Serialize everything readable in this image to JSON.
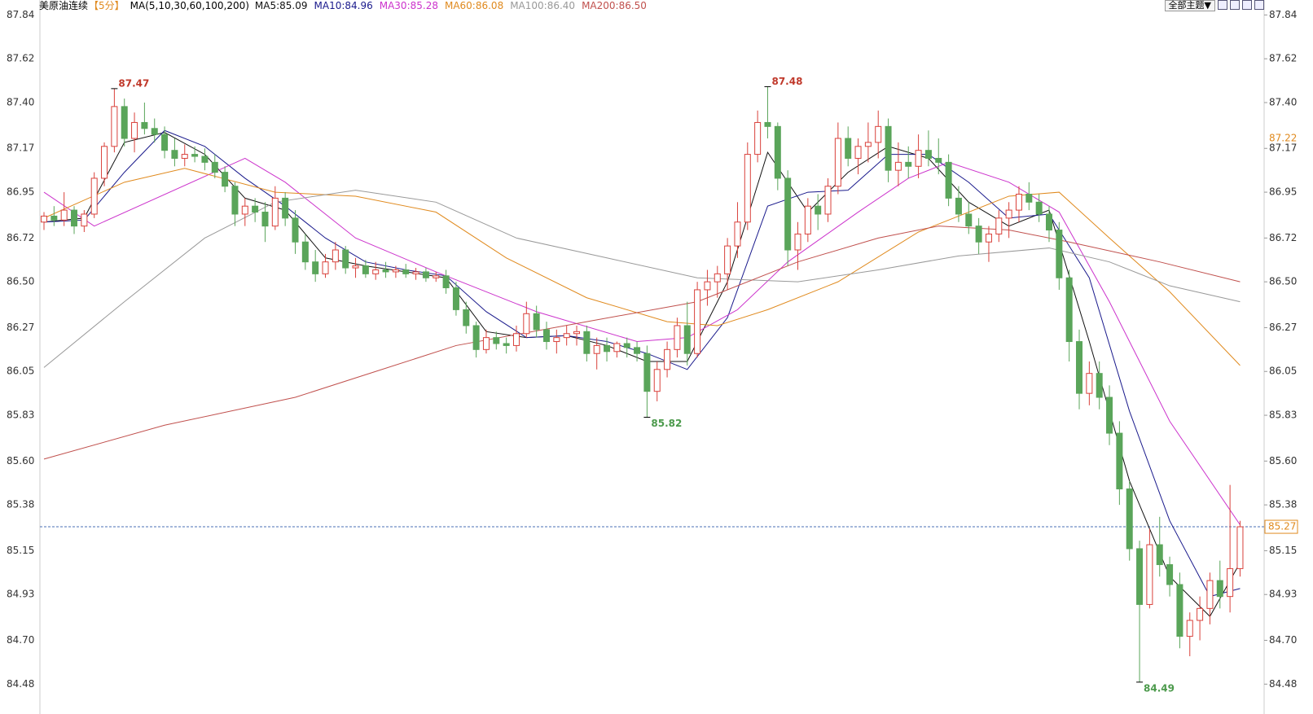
{
  "chart_data": {
    "type": "candlestick",
    "header": {
      "title": "美原油连续",
      "period": "【5分】",
      "ma_label": "MA(5,10,30,60,100,200)"
    },
    "toolbar": {
      "theme_button": "全部主题▼"
    },
    "ylim": [
      84.33,
      87.915
    ],
    "yticks": [
      {
        "value": 87.84,
        "label": "87.84"
      },
      {
        "value": 87.62,
        "label": "87.62"
      },
      {
        "value": 87.4,
        "label": "87.40"
      },
      {
        "value": 87.17,
        "label": "87.17"
      },
      {
        "value": 86.95,
        "label": "86.95"
      },
      {
        "value": 86.72,
        "label": "86.72"
      },
      {
        "value": 86.5,
        "label": "86.50"
      },
      {
        "value": 86.27,
        "label": "86.27"
      },
      {
        "value": 86.05,
        "label": "86.05"
      },
      {
        "value": 85.83,
        "label": "85.83"
      },
      {
        "value": 85.6,
        "label": "85.60"
      },
      {
        "value": 85.38,
        "label": "85.38"
      },
      {
        "value": 85.15,
        "label": "85.15"
      },
      {
        "value": 84.93,
        "label": "84.93"
      },
      {
        "value": 84.7,
        "label": "84.70"
      },
      {
        "value": 84.48,
        "label": "84.48"
      }
    ],
    "up_color": "#d9413b",
    "down_color": "#5aa55a",
    "candles": [
      [
        86.8,
        86.85,
        86.76,
        86.83
      ],
      [
        86.83,
        86.88,
        86.78,
        86.81
      ],
      [
        86.81,
        86.95,
        86.78,
        86.86
      ],
      [
        86.86,
        86.88,
        86.74,
        86.78
      ],
      [
        86.78,
        86.86,
        86.75,
        86.84
      ],
      [
        86.84,
        87.05,
        86.82,
        87.02
      ],
      [
        87.02,
        87.2,
        86.98,
        87.18
      ],
      [
        87.18,
        87.47,
        87.15,
        87.38
      ],
      [
        87.38,
        87.42,
        87.18,
        87.22
      ],
      [
        87.22,
        87.35,
        87.15,
        87.3
      ],
      [
        87.3,
        87.4,
        87.24,
        87.27
      ],
      [
        87.27,
        87.32,
        87.2,
        87.24
      ],
      [
        87.24,
        87.28,
        87.12,
        87.16
      ],
      [
        87.16,
        87.22,
        87.08,
        87.12
      ],
      [
        87.12,
        87.19,
        87.08,
        87.14
      ],
      [
        87.14,
        87.18,
        87.1,
        87.13
      ],
      [
        87.13,
        87.17,
        87.06,
        87.1
      ],
      [
        87.1,
        87.14,
        87.02,
        87.05
      ],
      [
        87.05,
        87.08,
        86.95,
        86.98
      ],
      [
        86.98,
        87.0,
        86.78,
        86.84
      ],
      [
        86.84,
        86.92,
        86.78,
        86.88
      ],
      [
        86.88,
        86.92,
        86.8,
        86.85
      ],
      [
        86.85,
        86.9,
        86.7,
        86.78
      ],
      [
        86.78,
        86.98,
        86.76,
        86.92
      ],
      [
        86.92,
        86.95,
        86.78,
        86.82
      ],
      [
        86.82,
        86.86,
        86.64,
        86.7
      ],
      [
        86.7,
        86.74,
        86.56,
        86.6
      ],
      [
        86.6,
        86.66,
        86.5,
        86.54
      ],
      [
        86.54,
        86.64,
        86.52,
        86.6
      ],
      [
        86.6,
        86.7,
        86.56,
        86.66
      ],
      [
        86.66,
        86.68,
        86.54,
        86.57
      ],
      [
        86.57,
        86.62,
        86.52,
        86.58
      ],
      [
        86.58,
        86.61,
        86.52,
        86.54
      ],
      [
        86.54,
        86.6,
        86.51,
        86.56
      ],
      [
        86.56,
        86.6,
        86.52,
        86.55
      ],
      [
        86.55,
        86.58,
        86.52,
        86.56
      ],
      [
        86.56,
        86.59,
        86.52,
        86.54
      ],
      [
        86.54,
        86.57,
        86.51,
        86.55
      ],
      [
        86.55,
        86.57,
        86.5,
        86.52
      ],
      [
        86.52,
        86.55,
        86.5,
        86.53
      ],
      [
        86.53,
        86.56,
        86.44,
        86.47
      ],
      [
        86.47,
        86.5,
        86.33,
        86.36
      ],
      [
        86.36,
        86.4,
        86.24,
        86.28
      ],
      [
        86.28,
        86.3,
        86.12,
        86.16
      ],
      [
        86.16,
        86.26,
        86.14,
        86.22
      ],
      [
        86.22,
        86.25,
        86.16,
        86.19
      ],
      [
        86.19,
        86.22,
        86.14,
        86.18
      ],
      [
        86.18,
        86.28,
        86.15,
        86.24
      ],
      [
        86.24,
        86.4,
        86.22,
        86.34
      ],
      [
        86.34,
        86.38,
        86.22,
        86.26
      ],
      [
        86.26,
        86.3,
        86.16,
        86.2
      ],
      [
        86.2,
        86.26,
        86.14,
        86.22
      ],
      [
        86.22,
        86.28,
        86.18,
        86.24
      ],
      [
        86.24,
        86.28,
        86.18,
        86.25
      ],
      [
        86.25,
        86.28,
        86.1,
        86.14
      ],
      [
        86.14,
        86.22,
        86.06,
        86.18
      ],
      [
        86.18,
        86.22,
        86.1,
        86.15
      ],
      [
        86.15,
        86.2,
        86.12,
        86.19
      ],
      [
        86.19,
        86.22,
        86.12,
        86.17
      ],
      [
        86.17,
        86.2,
        86.1,
        86.14
      ],
      [
        86.14,
        86.18,
        85.82,
        85.95
      ],
      [
        85.95,
        86.1,
        85.9,
        86.06
      ],
      [
        86.06,
        86.2,
        86.02,
        86.16
      ],
      [
        86.16,
        86.32,
        86.12,
        86.28
      ],
      [
        86.28,
        86.4,
        86.08,
        86.14
      ],
      [
        86.14,
        86.5,
        86.12,
        86.46
      ],
      [
        86.46,
        86.56,
        86.38,
        86.5
      ],
      [
        86.5,
        86.58,
        86.42,
        86.54
      ],
      [
        86.54,
        86.72,
        86.46,
        86.68
      ],
      [
        86.68,
        86.9,
        86.62,
        86.8
      ],
      [
        86.8,
        87.2,
        86.76,
        87.14
      ],
      [
        87.14,
        87.36,
        87.1,
        87.3
      ],
      [
        87.3,
        87.48,
        87.22,
        87.28
      ],
      [
        87.28,
        87.3,
        86.96,
        87.02
      ],
      [
        87.02,
        87.06,
        86.58,
        86.66
      ],
      [
        86.66,
        86.8,
        86.56,
        86.74
      ],
      [
        86.74,
        86.92,
        86.7,
        86.88
      ],
      [
        86.88,
        86.94,
        86.76,
        86.84
      ],
      [
        86.84,
        87.02,
        86.8,
        86.98
      ],
      [
        86.98,
        87.3,
        86.94,
        87.22
      ],
      [
        87.22,
        87.28,
        87.08,
        87.12
      ],
      [
        87.12,
        87.22,
        87.04,
        87.18
      ],
      [
        87.18,
        87.3,
        87.1,
        87.2
      ],
      [
        87.2,
        87.36,
        87.12,
        87.28
      ],
      [
        87.28,
        87.32,
        87.0,
        87.06
      ],
      [
        87.06,
        87.2,
        86.98,
        87.1
      ],
      [
        87.1,
        87.18,
        87.02,
        87.08
      ],
      [
        87.08,
        87.24,
        87.02,
        87.16
      ],
      [
        87.16,
        87.26,
        87.08,
        87.12
      ],
      [
        87.12,
        87.22,
        87.04,
        87.1
      ],
      [
        87.1,
        87.14,
        86.88,
        86.92
      ],
      [
        86.92,
        86.98,
        86.8,
        86.84
      ],
      [
        86.84,
        86.9,
        86.74,
        86.78
      ],
      [
        86.78,
        86.82,
        86.64,
        86.7
      ],
      [
        86.7,
        86.78,
        86.6,
        86.74
      ],
      [
        86.74,
        86.86,
        86.7,
        86.82
      ],
      [
        86.82,
        86.9,
        86.72,
        86.86
      ],
      [
        86.86,
        86.98,
        86.8,
        86.94
      ],
      [
        86.94,
        87.0,
        86.86,
        86.9
      ],
      [
        86.9,
        86.94,
        86.8,
        86.84
      ],
      [
        86.84,
        86.88,
        86.7,
        86.76
      ],
      [
        86.76,
        86.8,
        86.46,
        86.52
      ],
      [
        86.52,
        86.56,
        86.1,
        86.2
      ],
      [
        86.2,
        86.26,
        85.86,
        85.94
      ],
      [
        85.94,
        86.1,
        85.88,
        86.04
      ],
      [
        86.04,
        86.1,
        85.86,
        85.92
      ],
      [
        85.92,
        85.98,
        85.68,
        85.74
      ],
      [
        85.74,
        85.8,
        85.38,
        85.46
      ],
      [
        85.46,
        85.5,
        85.1,
        85.16
      ],
      [
        85.16,
        85.2,
        84.49,
        84.88
      ],
      [
        84.88,
        85.26,
        84.86,
        85.18
      ],
      [
        85.18,
        85.32,
        85.02,
        85.08
      ],
      [
        85.08,
        85.12,
        84.92,
        84.98
      ],
      [
        84.98,
        85.04,
        84.66,
        84.72
      ],
      [
        84.72,
        84.84,
        84.62,
        84.8
      ],
      [
        84.8,
        84.92,
        84.7,
        84.86
      ],
      [
        84.86,
        85.04,
        84.78,
        85.0
      ],
      [
        85.0,
        85.1,
        84.86,
        84.92
      ],
      [
        84.92,
        85.48,
        84.84,
        85.06
      ],
      [
        85.06,
        85.3,
        85.02,
        85.27
      ]
    ],
    "ma": [
      {
        "name": "MA5:85.09",
        "color": "#111111",
        "x": [
          0,
          4,
          8,
          12,
          16,
          20,
          24,
          28,
          32,
          36,
          40,
          44,
          48,
          52,
          56,
          60,
          64,
          68,
          72,
          76,
          80,
          84,
          88,
          92,
          96,
          100,
          104,
          108,
          112,
          116,
          119
        ],
        "values": [
          86.8,
          86.82,
          87.2,
          87.25,
          87.14,
          86.92,
          86.86,
          86.62,
          86.58,
          86.55,
          86.52,
          86.25,
          86.22,
          86.23,
          86.18,
          86.1,
          86.1,
          86.5,
          87.15,
          86.85,
          87.05,
          87.18,
          87.12,
          86.9,
          86.78,
          86.86,
          86.2,
          85.5,
          85.02,
          84.82,
          85.09
        ]
      },
      {
        "name": "MA10:84.96",
        "color": "#1a1a8c",
        "x": [
          0,
          4,
          8,
          12,
          16,
          20,
          24,
          28,
          32,
          36,
          40,
          44,
          48,
          52,
          56,
          60,
          64,
          68,
          72,
          76,
          80,
          84,
          88,
          92,
          96,
          100,
          104,
          108,
          112,
          116,
          119
        ],
        "values": [
          86.8,
          86.81,
          87.05,
          87.26,
          87.18,
          87.02,
          86.88,
          86.72,
          86.6,
          86.56,
          86.53,
          86.35,
          86.22,
          86.23,
          86.2,
          86.14,
          86.06,
          86.32,
          86.88,
          86.95,
          86.96,
          87.14,
          87.14,
          87.0,
          86.82,
          86.84,
          86.52,
          85.85,
          85.3,
          84.92,
          84.96
        ]
      },
      {
        "name": "MA30:85.28",
        "color": "#cc33cc",
        "x": [
          0,
          5,
          20,
          24,
          31,
          39,
          49,
          59,
          64,
          69,
          74,
          81,
          86,
          90,
          96,
          101,
          106,
          112,
          119
        ],
        "values": [
          86.95,
          86.78,
          87.12,
          87.0,
          86.72,
          86.55,
          86.35,
          86.2,
          86.22,
          86.36,
          86.6,
          86.85,
          87.02,
          87.1,
          87.0,
          86.85,
          86.4,
          85.8,
          85.28
        ]
      },
      {
        "name": "MA60:86.08",
        "color": "#e08a1e",
        "x": [
          0,
          8,
          14,
          23,
          31,
          39,
          46,
          54,
          62,
          67,
          72,
          79,
          87,
          96,
          101,
          106,
          112,
          119
        ],
        "values": [
          86.82,
          87.0,
          87.07,
          86.95,
          86.93,
          86.85,
          86.62,
          86.42,
          86.3,
          86.28,
          86.36,
          86.5,
          86.75,
          86.93,
          86.95,
          86.72,
          86.45,
          86.08
        ]
      },
      {
        "name": "MA100:86.40",
        "color": "#999999",
        "x": [
          0,
          8,
          16,
          23,
          31,
          39,
          47,
          56,
          65,
          75,
          83,
          91,
          100,
          106,
          112,
          119
        ],
        "values": [
          86.07,
          86.4,
          86.72,
          86.9,
          86.96,
          86.9,
          86.72,
          86.62,
          86.52,
          86.5,
          86.56,
          86.63,
          86.67,
          86.6,
          86.48,
          86.4
        ]
      },
      {
        "name": "MA200:86.50",
        "color": "#c0504d",
        "x": [
          0,
          12,
          25,
          33,
          41,
          54,
          65,
          75,
          83,
          89,
          96,
          102,
          111,
          119
        ],
        "values": [
          85.61,
          85.78,
          85.92,
          86.05,
          86.18,
          86.3,
          86.4,
          86.6,
          86.72,
          86.78,
          86.76,
          86.7,
          86.6,
          86.5
        ]
      }
    ],
    "annotations": [
      {
        "index": 7,
        "value": 87.47,
        "color": "#c0392b"
      },
      {
        "index": 72,
        "value": 87.48,
        "color": "#c0392b"
      },
      {
        "index": 60,
        "value": 85.82,
        "color": "#4c9a4c"
      },
      {
        "index": 109,
        "value": 84.49,
        "color": "#4c9a4c"
      }
    ],
    "right_markers": [
      {
        "value": 87.22,
        "color": "#e08a1e"
      }
    ],
    "last_price": {
      "value": 85.27,
      "color": "#e08a1e",
      "line_color": "#4a6fb5"
    }
  }
}
